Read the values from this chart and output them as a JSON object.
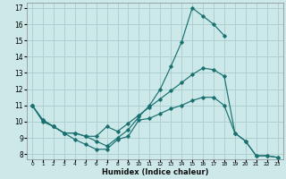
{
  "xlabel": "Humidex (Indice chaleur)",
  "background_color": "#cce8e8",
  "grid_color": "#aacccc",
  "line_color": "#1a7070",
  "xlim": [
    -0.5,
    23.5
  ],
  "ylim": [
    7.7,
    17.3
  ],
  "xticks": [
    0,
    1,
    2,
    3,
    4,
    5,
    6,
    7,
    8,
    9,
    10,
    11,
    12,
    13,
    14,
    15,
    16,
    17,
    18,
    19,
    20,
    21,
    22,
    23
  ],
  "yticks": [
    8,
    9,
    10,
    11,
    12,
    13,
    14,
    15,
    16,
    17
  ],
  "line1_x": [
    0,
    1,
    2,
    3,
    4,
    5,
    6,
    7,
    8,
    9,
    10,
    11,
    12,
    13,
    14,
    15,
    16,
    17,
    18,
    19,
    20,
    21,
    22,
    23
  ],
  "line1_y": [
    11,
    10,
    9.7,
    9.3,
    8.9,
    8.6,
    8.3,
    8.3,
    8.9,
    9.1,
    10.1,
    10.2,
    10.5,
    10.8,
    11.0,
    11.3,
    11.5,
    11.5,
    11.0,
    9.3,
    8.8,
    7.9,
    7.9,
    7.8
  ],
  "line2_x": [
    0,
    1,
    2,
    3,
    4,
    5,
    6,
    7,
    8,
    9,
    10,
    11,
    12,
    13,
    14,
    15,
    16,
    17,
    18,
    19,
    20,
    21,
    22,
    23
  ],
  "line2_y": [
    11,
    10.1,
    9.7,
    9.3,
    9.3,
    9.1,
    9.1,
    9.7,
    9.4,
    9.9,
    10.4,
    10.9,
    11.4,
    11.9,
    12.4,
    12.9,
    13.3,
    13.2,
    12.8,
    9.3,
    8.8,
    7.9,
    7.9,
    7.8
  ],
  "line3_x": [
    0,
    1,
    2,
    3,
    4,
    5,
    6,
    7,
    8,
    9,
    10,
    11,
    12,
    13,
    14,
    15,
    16,
    17,
    18
  ],
  "line3_y": [
    11,
    10.1,
    9.7,
    9.3,
    9.3,
    9.1,
    8.8,
    8.5,
    9.0,
    9.5,
    10.3,
    11.0,
    12.0,
    13.4,
    14.9,
    17.0,
    16.5,
    16.0,
    15.3
  ]
}
